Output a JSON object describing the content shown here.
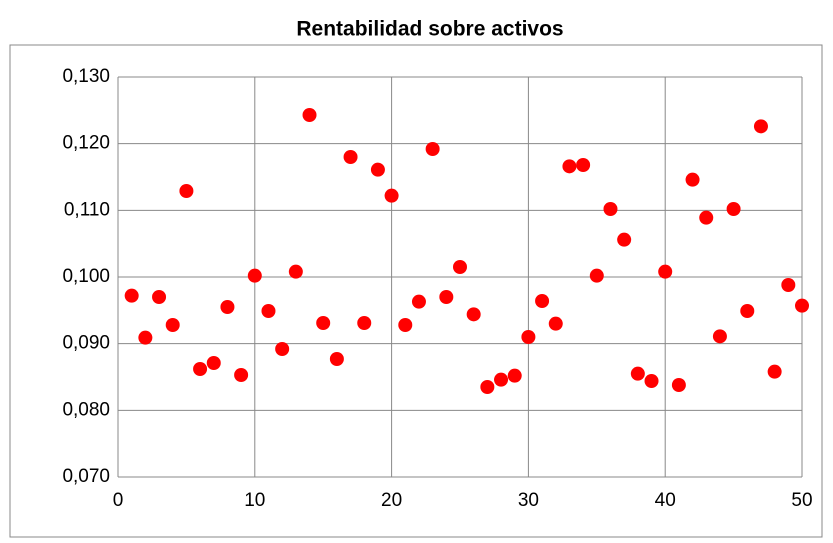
{
  "chart_data": {
    "type": "scatter",
    "title": "Rentabilidad sobre activos",
    "x": [
      1,
      2,
      3,
      4,
      5,
      6,
      7,
      8,
      9,
      10,
      11,
      12,
      13,
      14,
      15,
      16,
      17,
      18,
      19,
      20,
      21,
      22,
      23,
      24,
      25,
      26,
      27,
      28,
      29,
      30,
      31,
      32,
      33,
      34,
      35,
      36,
      37,
      38,
      39,
      40,
      41,
      42,
      43,
      44,
      45,
      46,
      47,
      48,
      49,
      50
    ],
    "series": [
      {
        "color": "#ff0000",
        "values": [
          0.0972,
          0.0909,
          0.097,
          0.0928,
          0.1129,
          0.0862,
          0.0871,
          0.0955,
          0.0853,
          0.1002,
          0.0949,
          0.0892,
          0.1008,
          0.1243,
          0.0931,
          0.0877,
          0.118,
          0.0931,
          0.1161,
          0.1122,
          0.0928,
          0.0963,
          0.1192,
          0.097,
          0.1015,
          0.0944,
          0.0835,
          0.0846,
          0.0852,
          0.091,
          0.0964,
          0.093,
          0.1166,
          0.1168,
          0.1002,
          0.1102,
          0.1056,
          0.0855,
          0.0844,
          0.1008,
          0.0838,
          0.1146,
          0.1089,
          0.0911,
          0.1102,
          0.0949,
          0.1226,
          0.0858,
          0.0988,
          0.0957
        ]
      }
    ],
    "xlim": [
      0,
      50
    ],
    "xticks": [
      0,
      10,
      20,
      30,
      40,
      50
    ],
    "ylim": [
      0.07,
      0.13
    ],
    "yticks": [
      {
        "value": 0.07,
        "label": "0,070"
      },
      {
        "value": 0.08,
        "label": "0,080"
      },
      {
        "value": 0.09,
        "label": "0,090"
      },
      {
        "value": 0.1,
        "label": "0,100"
      },
      {
        "value": 0.11,
        "label": "0,110"
      },
      {
        "value": 0.12,
        "label": "0,120"
      },
      {
        "value": 0.13,
        "label": "0,130"
      }
    ],
    "grid": true
  }
}
